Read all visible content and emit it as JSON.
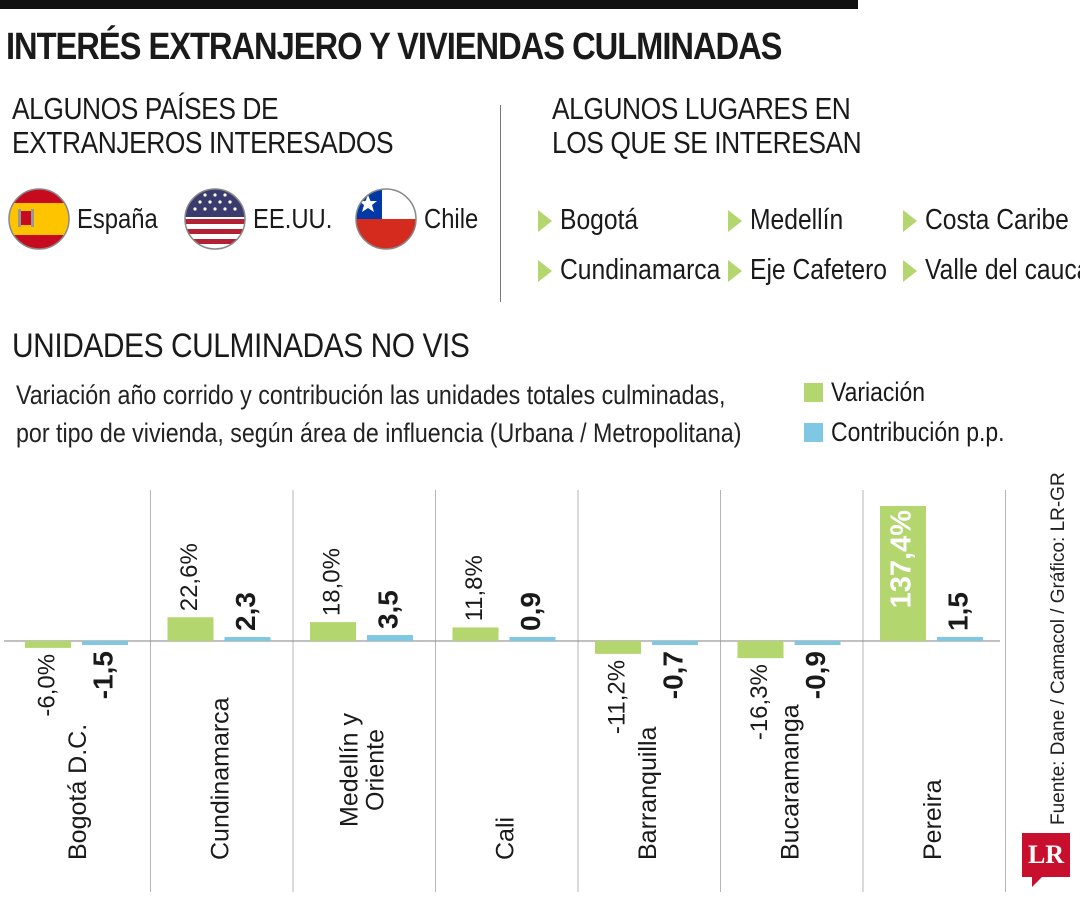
{
  "header": {
    "title": "INTERÉS EXTRANJERO Y VIVIENDAS CULMINADAS"
  },
  "countries": {
    "title_line1": "ALGUNOS PAÍSES DE",
    "title_line2": "EXTRANJEROS INTERESADOS",
    "items": [
      {
        "label": "España",
        "icon": "spain-flag-icon"
      },
      {
        "label": "EE.UU.",
        "icon": "usa-flag-icon"
      },
      {
        "label": "Chile",
        "icon": "chile-flag-icon"
      }
    ]
  },
  "places": {
    "title_line1": "ALGUNOS LUGARES EN",
    "title_line2": "LOS QUE SE INTERESAN",
    "items": [
      "Bogotá",
      "Medellín",
      "Costa Caribe",
      "Cundinamarca",
      "Eje Cafetero",
      "Valle del cauca"
    ]
  },
  "chart_data": {
    "type": "bar",
    "title": "UNIDADES CULMINADAS NO VIS",
    "subtitle_line1": "Variación año corrido y contribución las unidades totales culminadas,",
    "subtitle_line2": "por tipo de vivienda, según área de influencia (Urbana / Metropolitana)",
    "categories": [
      "Bogotá D.C.",
      "Cundinamarca",
      "Medellín y Oriente",
      "Cali",
      "Barranquilla",
      "Bucaramanga",
      "Pereira"
    ],
    "series": [
      {
        "name": "Variación",
        "color": "#b3d66e",
        "values": [
          -6.0,
          22.6,
          18.0,
          11.8,
          -11.2,
          -16.3,
          137.4
        ],
        "labels": [
          "-6,0%",
          "22,6%",
          "18,0%",
          "11,8%",
          "-11,2%",
          "-16,3%",
          "137,4%"
        ]
      },
      {
        "name": "Contribución p.p.",
        "color": "#7ec8e3",
        "values": [
          -1.5,
          2.3,
          3.5,
          0.9,
          -0.7,
          -0.9,
          1.5
        ],
        "labels": [
          "-1,5",
          "2,3",
          "3,5",
          "0,9",
          "-0,7",
          "-0,9",
          "1,5"
        ]
      }
    ],
    "legend_position": "top-right",
    "grid": false
  },
  "footer": {
    "source": "Fuente: Dane / Camacol / Gráfico: LR-GR",
    "logo": "LR"
  }
}
